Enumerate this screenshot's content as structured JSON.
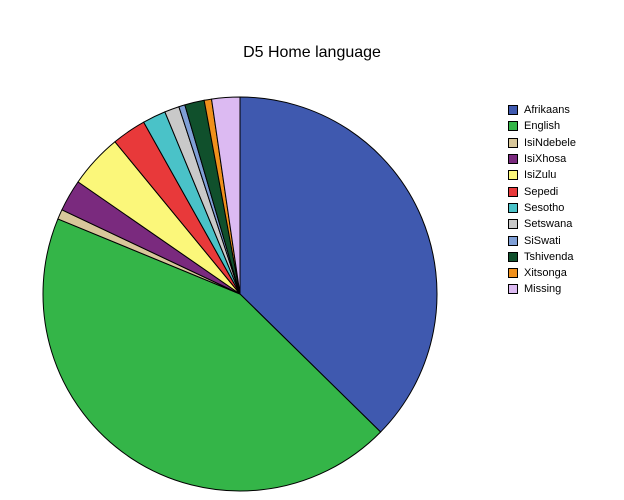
{
  "chart_data": {
    "type": "pie",
    "title": "D5 Home language",
    "legend_position": "right",
    "series": [
      {
        "name": "Afrikaans",
        "value": 37.2,
        "color": "#3f59af"
      },
      {
        "name": "English",
        "value": 43.7,
        "color": "#34b548"
      },
      {
        "name": "IsiNdebele",
        "value": 0.8,
        "color": "#d8c79a"
      },
      {
        "name": "IsiXhosa",
        "value": 2.6,
        "color": "#7a2a7e"
      },
      {
        "name": "IsiZulu",
        "value": 4.4,
        "color": "#fbf77a"
      },
      {
        "name": "Sepedi",
        "value": 2.8,
        "color": "#e8393a"
      },
      {
        "name": "Sesotho",
        "value": 1.9,
        "color": "#4ac2c8"
      },
      {
        "name": "Setswana",
        "value": 1.2,
        "color": "#c9c9c9"
      },
      {
        "name": "SiSwati",
        "value": 0.5,
        "color": "#7f9fd6"
      },
      {
        "name": "Tshivenda",
        "value": 1.6,
        "color": "#10502c"
      },
      {
        "name": "Xitsonga",
        "value": 0.6,
        "color": "#f0901c"
      },
      {
        "name": "Missing",
        "value": 2.3,
        "color": "#dcbaf2"
      }
    ]
  }
}
